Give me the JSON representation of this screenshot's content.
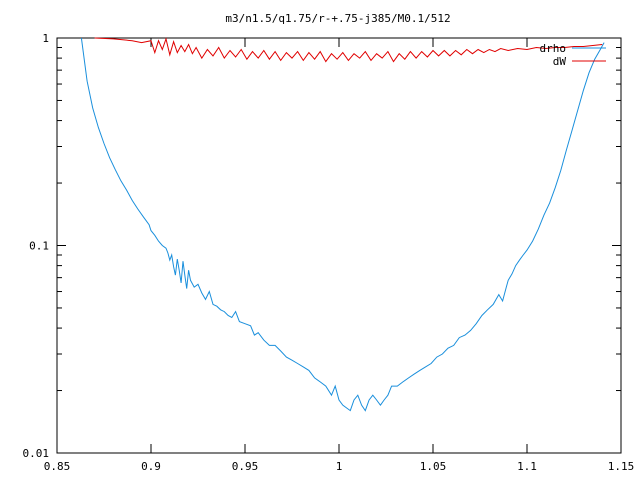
{
  "chart_data": {
    "type": "line",
    "title": "m3/n1.5/q1.75/r-+.75-j385/M0.1/512",
    "xlabel": "",
    "ylabel": "",
    "xlim": [
      0.85,
      1.15
    ],
    "ylim": [
      0.01,
      1
    ],
    "yscale": "log",
    "grid": false,
    "legend_position": "top-right",
    "x_ticks": [
      {
        "value": 0.85,
        "label": "0.85"
      },
      {
        "value": 0.9,
        "label": "0.9"
      },
      {
        "value": 0.95,
        "label": "0.95"
      },
      {
        "value": 1.0,
        "label": "1"
      },
      {
        "value": 1.05,
        "label": "1.05"
      },
      {
        "value": 1.1,
        "label": "1.1"
      },
      {
        "value": 1.15,
        "label": "1.15"
      }
    ],
    "y_ticks": [
      {
        "value": 0.01,
        "label": "0.01"
      },
      {
        "value": 0.1,
        "label": "0.1"
      },
      {
        "value": 1,
        "label": "1"
      }
    ],
    "series": [
      {
        "name": "drho",
        "color": "#1a8fdc",
        "points": [
          [
            0.863,
            1.0
          ],
          [
            0.866,
            0.62
          ],
          [
            0.869,
            0.46
          ],
          [
            0.872,
            0.37
          ],
          [
            0.875,
            0.31
          ],
          [
            0.878,
            0.265
          ],
          [
            0.881,
            0.232
          ],
          [
            0.884,
            0.205
          ],
          [
            0.887,
            0.185
          ],
          [
            0.89,
            0.165
          ],
          [
            0.893,
            0.15
          ],
          [
            0.896,
            0.137
          ],
          [
            0.899,
            0.126
          ],
          [
            0.9,
            0.118
          ],
          [
            0.902,
            0.112
          ],
          [
            0.904,
            0.105
          ],
          [
            0.906,
            0.1
          ],
          [
            0.908,
            0.097
          ],
          [
            0.909,
            0.092
          ],
          [
            0.91,
            0.085
          ],
          [
            0.911,
            0.09
          ],
          [
            0.912,
            0.079
          ],
          [
            0.913,
            0.072
          ],
          [
            0.914,
            0.086
          ],
          [
            0.915,
            0.076
          ],
          [
            0.916,
            0.066
          ],
          [
            0.917,
            0.084
          ],
          [
            0.918,
            0.072
          ],
          [
            0.919,
            0.062
          ],
          [
            0.92,
            0.076
          ],
          [
            0.921,
            0.068
          ],
          [
            0.923,
            0.063
          ],
          [
            0.925,
            0.065
          ],
          [
            0.927,
            0.059
          ],
          [
            0.929,
            0.055
          ],
          [
            0.931,
            0.06
          ],
          [
            0.933,
            0.052
          ],
          [
            0.935,
            0.051
          ],
          [
            0.937,
            0.049
          ],
          [
            0.939,
            0.048
          ],
          [
            0.941,
            0.046
          ],
          [
            0.943,
            0.045
          ],
          [
            0.945,
            0.048
          ],
          [
            0.947,
            0.043
          ],
          [
            0.95,
            0.042
          ],
          [
            0.953,
            0.041
          ],
          [
            0.955,
            0.037
          ],
          [
            0.957,
            0.038
          ],
          [
            0.96,
            0.035
          ],
          [
            0.963,
            0.033
          ],
          [
            0.966,
            0.033
          ],
          [
            0.969,
            0.031
          ],
          [
            0.972,
            0.029
          ],
          [
            0.975,
            0.028
          ],
          [
            0.978,
            0.027
          ],
          [
            0.981,
            0.026
          ],
          [
            0.984,
            0.025
          ],
          [
            0.987,
            0.023
          ],
          [
            0.99,
            0.022
          ],
          [
            0.993,
            0.021
          ],
          [
            0.996,
            0.019
          ],
          [
            0.998,
            0.021
          ],
          [
            1.0,
            0.018
          ],
          [
            1.002,
            0.017
          ],
          [
            1.004,
            0.0165
          ],
          [
            1.006,
            0.016
          ],
          [
            1.008,
            0.018
          ],
          [
            1.01,
            0.019
          ],
          [
            1.012,
            0.017
          ],
          [
            1.014,
            0.016
          ],
          [
            1.016,
            0.018
          ],
          [
            1.018,
            0.019
          ],
          [
            1.02,
            0.018
          ],
          [
            1.022,
            0.017
          ],
          [
            1.024,
            0.018
          ],
          [
            1.026,
            0.019
          ],
          [
            1.028,
            0.021
          ],
          [
            1.031,
            0.021
          ],
          [
            1.034,
            0.022
          ],
          [
            1.037,
            0.023
          ],
          [
            1.04,
            0.024
          ],
          [
            1.043,
            0.025
          ],
          [
            1.046,
            0.026
          ],
          [
            1.049,
            0.027
          ],
          [
            1.052,
            0.029
          ],
          [
            1.055,
            0.03
          ],
          [
            1.058,
            0.032
          ],
          [
            1.061,
            0.033
          ],
          [
            1.064,
            0.036
          ],
          [
            1.067,
            0.037
          ],
          [
            1.07,
            0.039
          ],
          [
            1.073,
            0.042
          ],
          [
            1.076,
            0.046
          ],
          [
            1.079,
            0.049
          ],
          [
            1.082,
            0.052
          ],
          [
            1.085,
            0.058
          ],
          [
            1.087,
            0.054
          ],
          [
            1.089,
            0.063
          ],
          [
            1.09,
            0.068
          ],
          [
            1.092,
            0.073
          ],
          [
            1.094,
            0.08
          ],
          [
            1.096,
            0.085
          ],
          [
            1.098,
            0.09
          ],
          [
            1.1,
            0.095
          ],
          [
            1.103,
            0.105
          ],
          [
            1.106,
            0.12
          ],
          [
            1.109,
            0.14
          ],
          [
            1.112,
            0.16
          ],
          [
            1.115,
            0.19
          ],
          [
            1.118,
            0.23
          ],
          [
            1.121,
            0.29
          ],
          [
            1.124,
            0.36
          ],
          [
            1.127,
            0.45
          ],
          [
            1.13,
            0.56
          ],
          [
            1.133,
            0.68
          ],
          [
            1.136,
            0.79
          ],
          [
            1.139,
            0.88
          ],
          [
            1.141,
            0.95
          ]
        ]
      },
      {
        "name": "dW",
        "color": "#e00000",
        "points": [
          [
            0.87,
            1.0
          ],
          [
            0.88,
            0.99
          ],
          [
            0.89,
            0.97
          ],
          [
            0.895,
            0.95
          ],
          [
            0.9,
            0.97
          ],
          [
            0.902,
            0.85
          ],
          [
            0.904,
            0.97
          ],
          [
            0.906,
            0.88
          ],
          [
            0.908,
            0.99
          ],
          [
            0.91,
            0.83
          ],
          [
            0.912,
            0.96
          ],
          [
            0.914,
            0.85
          ],
          [
            0.916,
            0.92
          ],
          [
            0.918,
            0.86
          ],
          [
            0.92,
            0.93
          ],
          [
            0.922,
            0.84
          ],
          [
            0.924,
            0.9
          ],
          [
            0.927,
            0.8
          ],
          [
            0.93,
            0.88
          ],
          [
            0.933,
            0.82
          ],
          [
            0.936,
            0.9
          ],
          [
            0.939,
            0.8
          ],
          [
            0.942,
            0.87
          ],
          [
            0.945,
            0.81
          ],
          [
            0.948,
            0.88
          ],
          [
            0.951,
            0.79
          ],
          [
            0.954,
            0.86
          ],
          [
            0.957,
            0.8
          ],
          [
            0.96,
            0.87
          ],
          [
            0.963,
            0.79
          ],
          [
            0.966,
            0.86
          ],
          [
            0.969,
            0.78
          ],
          [
            0.972,
            0.85
          ],
          [
            0.975,
            0.8
          ],
          [
            0.978,
            0.86
          ],
          [
            0.981,
            0.78
          ],
          [
            0.984,
            0.85
          ],
          [
            0.987,
            0.79
          ],
          [
            0.99,
            0.86
          ],
          [
            0.993,
            0.77
          ],
          [
            0.996,
            0.84
          ],
          [
            0.999,
            0.79
          ],
          [
            1.002,
            0.85
          ],
          [
            1.005,
            0.78
          ],
          [
            1.008,
            0.84
          ],
          [
            1.011,
            0.8
          ],
          [
            1.014,
            0.86
          ],
          [
            1.017,
            0.78
          ],
          [
            1.02,
            0.84
          ],
          [
            1.023,
            0.8
          ],
          [
            1.026,
            0.86
          ],
          [
            1.029,
            0.77
          ],
          [
            1.032,
            0.84
          ],
          [
            1.035,
            0.79
          ],
          [
            1.038,
            0.86
          ],
          [
            1.041,
            0.8
          ],
          [
            1.044,
            0.86
          ],
          [
            1.047,
            0.81
          ],
          [
            1.05,
            0.87
          ],
          [
            1.053,
            0.82
          ],
          [
            1.056,
            0.87
          ],
          [
            1.059,
            0.82
          ],
          [
            1.062,
            0.87
          ],
          [
            1.065,
            0.83
          ],
          [
            1.068,
            0.88
          ],
          [
            1.071,
            0.84
          ],
          [
            1.074,
            0.88
          ],
          [
            1.077,
            0.85
          ],
          [
            1.08,
            0.88
          ],
          [
            1.083,
            0.86
          ],
          [
            1.086,
            0.89
          ],
          [
            1.09,
            0.87
          ],
          [
            1.095,
            0.89
          ],
          [
            1.1,
            0.88
          ],
          [
            1.105,
            0.9
          ],
          [
            1.11,
            0.89
          ],
          [
            1.115,
            0.9
          ],
          [
            1.12,
            0.9
          ],
          [
            1.125,
            0.91
          ],
          [
            1.13,
            0.91
          ],
          [
            1.135,
            0.92
          ],
          [
            1.14,
            0.93
          ]
        ]
      }
    ]
  }
}
